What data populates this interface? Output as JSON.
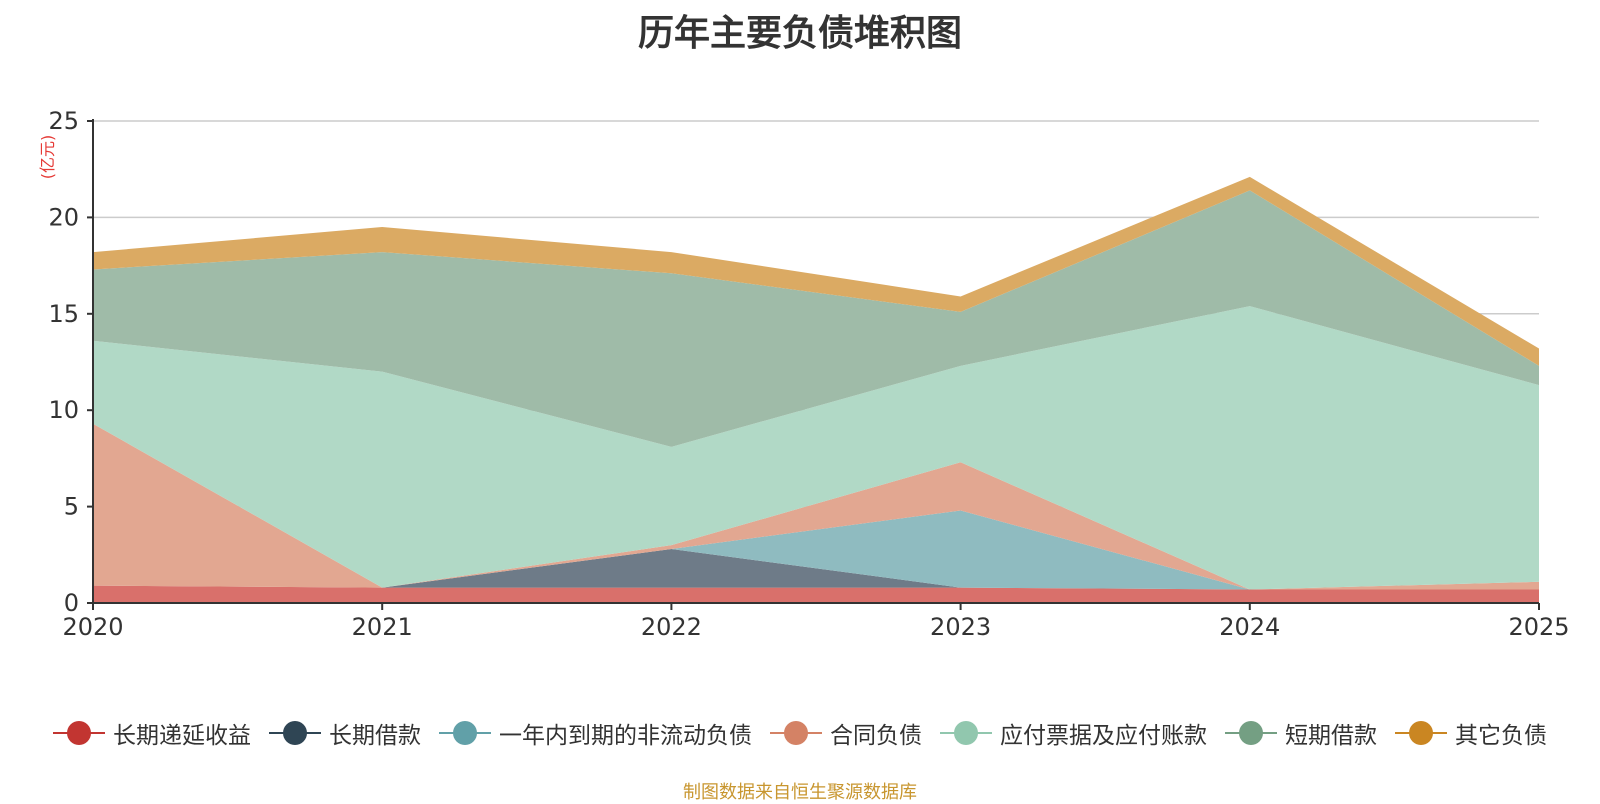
{
  "chart_data": {
    "type": "area",
    "title": "历年主要负债堆积图",
    "ylabel": "(亿元)",
    "xlabel": "",
    "ylim": [
      0,
      25
    ],
    "yticks": [
      0,
      5,
      10,
      15,
      20,
      25
    ],
    "categories": [
      "2020",
      "2021",
      "2022",
      "2023",
      "2024",
      "2025"
    ],
    "stacked": true,
    "series": [
      {
        "name": "长期递延收益",
        "color": "#d9706b",
        "legend_color": "#c23531",
        "values": [
          0.9,
          0.8,
          0.8,
          0.8,
          0.7,
          0.7
        ]
      },
      {
        "name": "长期借款",
        "color": "#6e7b88",
        "legend_color": "#2f4554",
        "values": [
          0.0,
          0.0,
          2.0,
          0.0,
          0.0,
          0.0
        ]
      },
      {
        "name": "一年内到期的非流动负债",
        "color": "#8fbbc0",
        "legend_color": "#61a0a8",
        "values": [
          0.0,
          0.0,
          0.0,
          4.0,
          0.0,
          0.0
        ]
      },
      {
        "name": "合同负债",
        "color": "#e2a791",
        "legend_color": "#d48265",
        "values": [
          8.4,
          0.0,
          0.2,
          2.5,
          0.0,
          0.4
        ]
      },
      {
        "name": "应付票据及应付账款",
        "color": "#b1d9c6",
        "legend_color": "#91c7ae",
        "values": [
          4.3,
          11.2,
          5.1,
          5.0,
          14.7,
          10.2
        ]
      },
      {
        "name": "短期借款",
        "color": "#9fbba8",
        "legend_color": "#749f83",
        "values": [
          3.7,
          6.2,
          9.0,
          2.8,
          6.0,
          1.0
        ]
      },
      {
        "name": "其它负债",
        "color": "#dbaa63",
        "legend_color": "#ca8622",
        "values": [
          0.9,
          1.3,
          1.1,
          0.8,
          0.7,
          0.9
        ]
      }
    ]
  },
  "footer": {
    "source": "制图数据来自恒生聚源数据库"
  }
}
